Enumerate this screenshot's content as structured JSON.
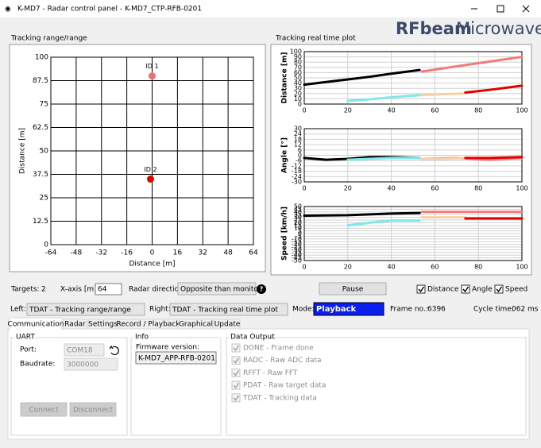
{
  "window": {
    "title": "K-MD7 - Radar control panel - K-MD7_CTP-RFB-0201"
  },
  "logo": {
    "brand": "RFbeam",
    "suffix": "Microwave"
  },
  "left_panel": {
    "title": "Tracking range/range",
    "chart_data": {
      "type": "scatter",
      "xlabel": "Distance [m]",
      "ylabel": "Distance [m]",
      "xlim": [
        -64,
        64
      ],
      "xticks": [
        -64,
        -48,
        -32,
        -16,
        0,
        16,
        32,
        48,
        64
      ],
      "ylim": [
        0,
        100
      ],
      "yticks": [
        0,
        12.5,
        25,
        37.5,
        50,
        62.5,
        75,
        87.5,
        100
      ],
      "grid": true,
      "labels": [
        "ID 1",
        "ID 2"
      ],
      "x": [
        0,
        -1
      ],
      "values": [
        90,
        35
      ],
      "colors": [
        "#f07070",
        "#e00000"
      ]
    }
  },
  "right_panel": {
    "title": "Tracking real time plot",
    "chart_data": [
      {
        "type": "line",
        "ylabel": "Distance [m]",
        "xlim": [
          0,
          100
        ],
        "xticks": [
          0,
          20,
          40,
          60,
          80,
          100
        ],
        "ylim": [
          0,
          100
        ],
        "yticks": [
          0,
          10,
          20,
          30,
          40,
          50,
          60,
          70,
          80,
          90,
          100
        ],
        "grid": true,
        "series": [
          {
            "color": "#000000",
            "x": [
              0,
              10,
              20,
              30,
              40,
              53
            ],
            "values": [
              37,
              42,
              47,
              52,
              58,
              65
            ]
          },
          {
            "color": "#7fe8e8",
            "x": [
              20,
              30,
              40,
              53
            ],
            "values": [
              6,
              9,
              13,
              17
            ]
          },
          {
            "color": "#f07b7b",
            "x": [
              54,
              70,
              85,
              100
            ],
            "values": [
              62,
              72,
              81,
              90
            ]
          },
          {
            "color": "#f5cfa8",
            "x": [
              54,
              64,
              74
            ],
            "values": [
              17,
              19,
              20
            ]
          },
          {
            "color": "#e00000",
            "x": [
              74,
              85,
              100
            ],
            "values": [
              22,
              27,
              35
            ]
          }
        ]
      },
      {
        "type": "line",
        "ylabel": "Angle [°]",
        "xlim": [
          0,
          100
        ],
        "xticks": [
          0,
          20,
          40,
          60,
          80,
          100
        ],
        "ylim": [
          -30,
          30
        ],
        "yticks": [
          -30,
          -24,
          -18,
          -12,
          -6,
          0,
          6,
          12,
          18,
          24,
          30
        ],
        "grid": true,
        "series": [
          {
            "color": "#000000",
            "x": [
              0,
              5,
              10,
              20,
              30,
              40,
              53
            ],
            "values": [
              -3,
              -4,
              -5,
              -4,
              -2,
              -2,
              -3
            ]
          },
          {
            "color": "#7fe8e8",
            "x": [
              20,
              30,
              40,
              53
            ],
            "values": [
              -5,
              -4,
              -3,
              -3
            ]
          },
          {
            "color": "#f07b7b",
            "x": [
              54,
              70,
              85,
              100
            ],
            "values": [
              -4,
              -3,
              -5,
              -3
            ]
          },
          {
            "color": "#f5cfa8",
            "x": [
              54,
              64,
              74
            ],
            "values": [
              -4,
              -4,
              -3
            ]
          },
          {
            "color": "#e00000",
            "x": [
              74,
              85,
              100
            ],
            "values": [
              -3,
              -3,
              -2
            ]
          }
        ]
      },
      {
        "type": "line",
        "ylabel": "Speed [km/h]",
        "xlim": [
          0,
          100
        ],
        "xticks": [
          0,
          20,
          40,
          60,
          80,
          100
        ],
        "ylim": [
          -50,
          50
        ],
        "yticks": [
          -50,
          -45,
          -40,
          -35,
          -30,
          -25,
          -20,
          -15,
          -10,
          -5,
          0,
          5,
          10,
          15,
          20,
          25,
          30,
          35,
          40,
          45,
          50
        ],
        "grid": true,
        "series": [
          {
            "color": "#000000",
            "x": [
              0,
              20,
              40,
              53
            ],
            "values": [
              33,
              34,
              37,
              38
            ]
          },
          {
            "color": "#7fe8e8",
            "x": [
              20,
              30,
              40,
              53
            ],
            "values": [
              15,
              20,
              24,
              24
            ]
          },
          {
            "color": "#f07b7b",
            "x": [
              54,
              100
            ],
            "values": [
              40,
              40
            ]
          },
          {
            "color": "#f5cfa8",
            "x": [
              54,
              74
            ],
            "values": [
              30,
              30
            ]
          },
          {
            "color": "#e00000",
            "x": [
              74,
              100
            ],
            "values": [
              28,
              28
            ]
          }
        ]
      }
    ]
  },
  "controls": {
    "targets_label": "Targets:",
    "targets": 2,
    "xaxis_label": "X-axis [m]:",
    "xaxis": 64,
    "direction_label": "Radar direction:",
    "direction": "Opposite than monito",
    "pause": "Pause",
    "checks": [
      "Distance",
      "Angle",
      "Speed"
    ],
    "left_label": "Left:",
    "left": "TDAT - Tracking range/range",
    "right_label": "Right:",
    "right": "TDAT - Tracking real time plot",
    "mode_label": "Mode:",
    "mode": "Playback",
    "frame_label": "Frame no.:",
    "frame": 6396,
    "cycle_label": "Cycle time:",
    "cycle": "062 ms"
  },
  "tabs": [
    "Communication",
    "Radar",
    "Settings",
    "Record / Playback",
    "Graphical",
    "Update"
  ],
  "uart": {
    "title": "UART",
    "port_label": "Port:",
    "port": "COM18",
    "baud_label": "Baudrate:",
    "baud": "3000000",
    "connect": "Connect",
    "disconnect": "Disconnect"
  },
  "info": {
    "title": "Info",
    "fw_label": "Firmware version:",
    "fw": "K-MD7_APP-RFB-0201"
  },
  "data_output": {
    "title": "Data Output",
    "items": [
      "DONE - Frame done",
      "RADC - Raw ADC data",
      "RFFT - Raw FFT",
      "PDAT - Raw target data",
      "TDAT - Tracking data"
    ]
  }
}
